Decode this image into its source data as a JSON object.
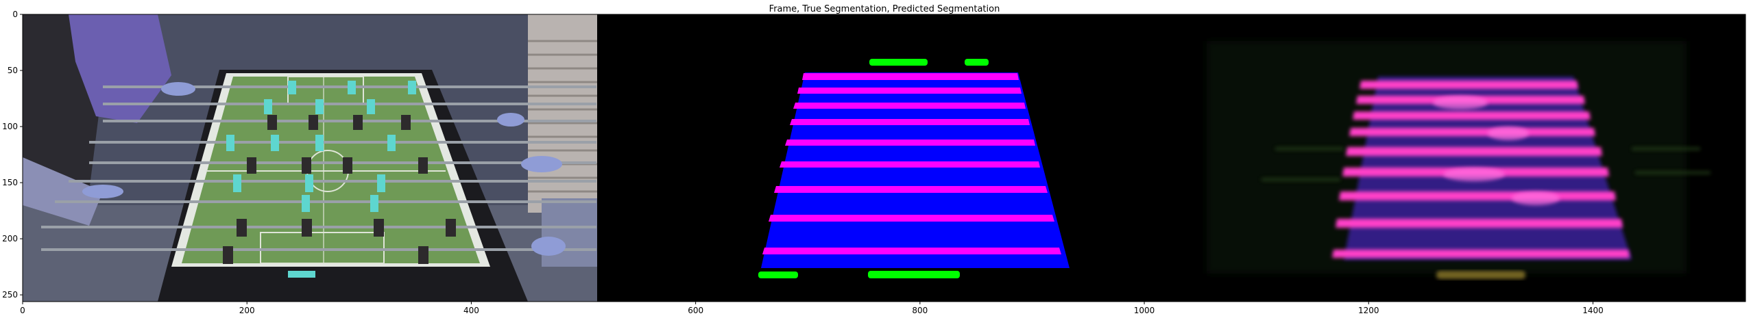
{
  "figure": {
    "title": "Frame, True Segmentation, Predicted Segmentation"
  },
  "axes": {
    "x_ticks": [
      0,
      200,
      400,
      600,
      800,
      1000,
      1200,
      1400
    ],
    "y_ticks": [
      0,
      50,
      100,
      150,
      200,
      250
    ],
    "x_range": [
      0,
      1536
    ],
    "y_range": [
      256,
      0
    ]
  },
  "panels": [
    {
      "name": "frame",
      "description_kind": "photo"
    },
    {
      "name": "true-segmentation",
      "description_kind": "mask"
    },
    {
      "name": "predicted-segmentation",
      "description_kind": "mask"
    }
  ],
  "colors": {
    "table_field": "#0000ff",
    "rods": "#ff00ff",
    "goals": "#00ff00",
    "background": "#000000"
  }
}
